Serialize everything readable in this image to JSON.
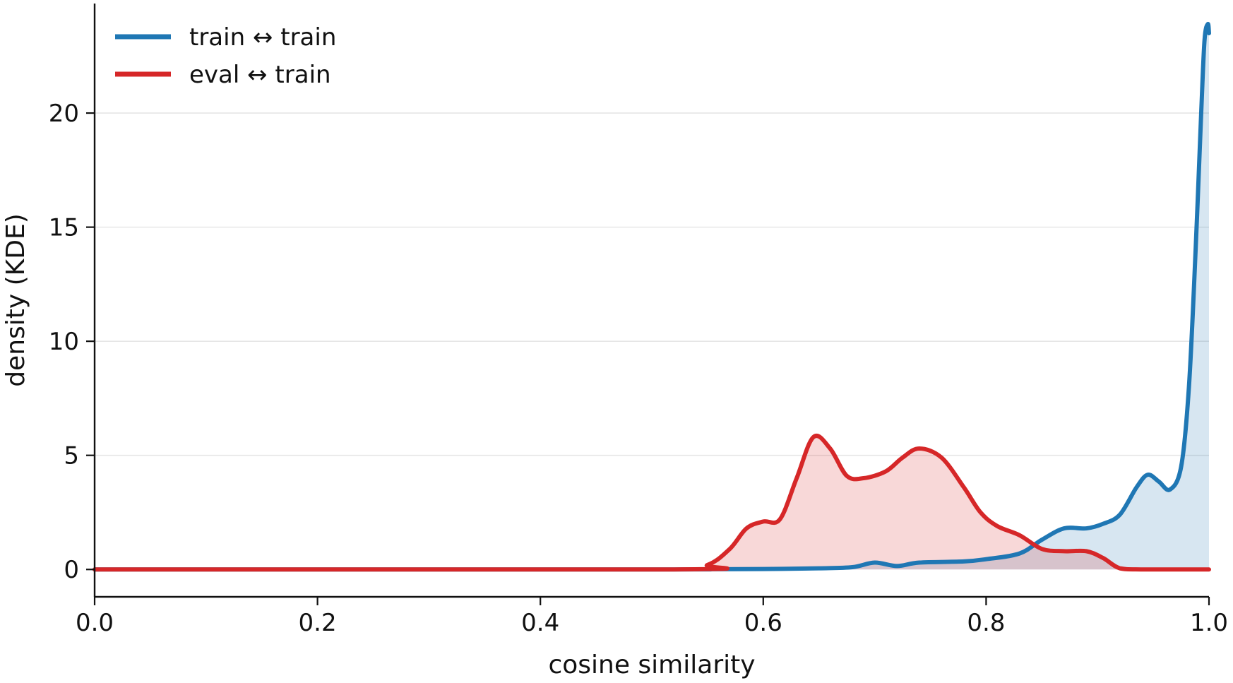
{
  "chart_data": {
    "type": "area",
    "title": "",
    "xlabel": "cosine similarity",
    "ylabel": "density (KDE)",
    "xlim": [
      0.0,
      1.0
    ],
    "ylim": [
      -1.2,
      24.8
    ],
    "xticks": [
      "0.0",
      "0.2",
      "0.4",
      "0.6",
      "0.8",
      "1.0"
    ],
    "yticks": [
      "0",
      "5",
      "10",
      "15",
      "20"
    ],
    "grid": "horizontal",
    "legend_position": "top-left",
    "series": [
      {
        "name": "train ↔ train",
        "color": "#1f77b4",
        "fill": "#1f77b4",
        "points": [
          [
            0,
            0
          ],
          [
            0.5,
            0
          ],
          [
            0.55,
            0.01
          ],
          [
            0.6,
            0.02
          ],
          [
            0.65,
            0.05
          ],
          [
            0.68,
            0.1
          ],
          [
            0.7,
            0.3
          ],
          [
            0.72,
            0.15
          ],
          [
            0.74,
            0.3
          ],
          [
            0.78,
            0.35
          ],
          [
            0.8,
            0.45
          ],
          [
            0.83,
            0.7
          ],
          [
            0.85,
            1.3
          ],
          [
            0.87,
            1.8
          ],
          [
            0.89,
            1.8
          ],
          [
            0.905,
            2.0
          ],
          [
            0.92,
            2.4
          ],
          [
            0.935,
            3.6
          ],
          [
            0.945,
            4.15
          ],
          [
            0.955,
            3.85
          ],
          [
            0.965,
            3.5
          ],
          [
            0.975,
            4.5
          ],
          [
            0.982,
            8
          ],
          [
            0.988,
            14
          ],
          [
            0.993,
            20
          ],
          [
            0.996,
            23.2
          ],
          [
            0.999,
            23.9
          ],
          [
            1.0,
            23.5
          ]
        ]
      },
      {
        "name": "eval ↔ train",
        "color": "#d62728",
        "fill": "#d62728",
        "points": [
          [
            0,
            0
          ],
          [
            0.52,
            0
          ],
          [
            0.55,
            0.2
          ],
          [
            0.57,
            0.9
          ],
          [
            0.585,
            1.8
          ],
          [
            0.6,
            2.1
          ],
          [
            0.615,
            2.2
          ],
          [
            0.63,
            4.0
          ],
          [
            0.645,
            5.8
          ],
          [
            0.66,
            5.3
          ],
          [
            0.675,
            4.1
          ],
          [
            0.69,
            4.0
          ],
          [
            0.71,
            4.3
          ],
          [
            0.725,
            4.9
          ],
          [
            0.74,
            5.3
          ],
          [
            0.76,
            4.9
          ],
          [
            0.78,
            3.6
          ],
          [
            0.795,
            2.5
          ],
          [
            0.81,
            1.9
          ],
          [
            0.83,
            1.5
          ],
          [
            0.85,
            0.9
          ],
          [
            0.87,
            0.8
          ],
          [
            0.89,
            0.8
          ],
          [
            0.905,
            0.5
          ],
          [
            0.92,
            0.05
          ],
          [
            0.94,
            0
          ],
          [
            1.0,
            0
          ]
        ]
      }
    ]
  }
}
